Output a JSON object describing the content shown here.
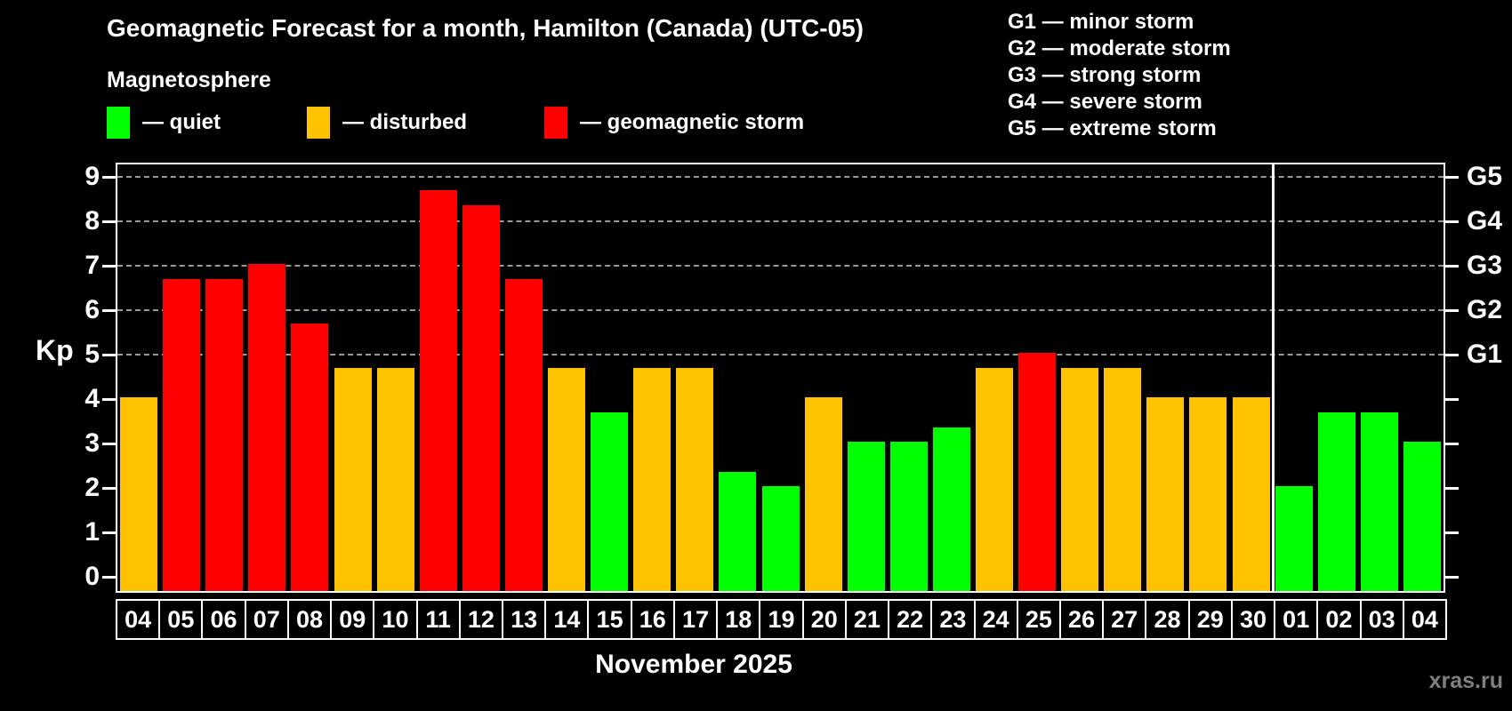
{
  "header": {
    "title": "Geomagnetic Forecast for a month, Hamilton (Canada) (UTC-05)",
    "subtitle": "Magnetosphere"
  },
  "legend": {
    "items": [
      {
        "key": "quiet",
        "label": "— quiet"
      },
      {
        "key": "disturbed",
        "label": "— disturbed"
      },
      {
        "key": "storm",
        "label": "— geomagnetic storm"
      }
    ]
  },
  "g_scale_legend": {
    "items": [
      "G1 — minor storm",
      "G2 — moderate storm",
      "G3 — strong storm",
      "G4 — severe storm",
      "G5 — extreme storm"
    ]
  },
  "chart_data": {
    "type": "bar",
    "title": "Geomagnetic Forecast for a month, Hamilton (Canada) (UTC-05)",
    "ylabel": "Kp",
    "xlabel": "November 2025",
    "ylim": [
      0,
      9
    ],
    "y_ticks": [
      0,
      1,
      2,
      3,
      4,
      5,
      6,
      7,
      8,
      9
    ],
    "gridlines_at": [
      5,
      6,
      7,
      8,
      9
    ],
    "grid": "dashed",
    "legend_position": "top",
    "right_axis": [
      {
        "kp": 5,
        "label": "G1"
      },
      {
        "kp": 6,
        "label": "G2"
      },
      {
        "kp": 7,
        "label": "G3"
      },
      {
        "kp": 8,
        "label": "G4"
      },
      {
        "kp": 9,
        "label": "G5"
      }
    ],
    "colors": {
      "quiet": "#00ff00",
      "disturbed": "#ffc200",
      "storm": "#ff0000",
      "grid": "#9a9a9a",
      "frame": "#ffffff",
      "watermark": "#7f7f7f"
    },
    "month_separator_after_index": 26,
    "bars": [
      {
        "day": "04",
        "value": 4.0,
        "status": "disturbed"
      },
      {
        "day": "05",
        "value": 6.67,
        "status": "storm"
      },
      {
        "day": "06",
        "value": 6.67,
        "status": "storm"
      },
      {
        "day": "07",
        "value": 7.0,
        "status": "storm"
      },
      {
        "day": "08",
        "value": 5.67,
        "status": "storm"
      },
      {
        "day": "09",
        "value": 4.67,
        "status": "disturbed"
      },
      {
        "day": "10",
        "value": 4.67,
        "status": "disturbed"
      },
      {
        "day": "11",
        "value": 8.67,
        "status": "storm"
      },
      {
        "day": "12",
        "value": 8.33,
        "status": "storm"
      },
      {
        "day": "13",
        "value": 6.67,
        "status": "storm"
      },
      {
        "day": "14",
        "value": 4.67,
        "status": "disturbed"
      },
      {
        "day": "15",
        "value": 3.67,
        "status": "quiet"
      },
      {
        "day": "16",
        "value": 4.67,
        "status": "disturbed"
      },
      {
        "day": "17",
        "value": 4.67,
        "status": "disturbed"
      },
      {
        "day": "18",
        "value": 2.33,
        "status": "quiet"
      },
      {
        "day": "19",
        "value": 2.0,
        "status": "quiet"
      },
      {
        "day": "20",
        "value": 4.0,
        "status": "disturbed"
      },
      {
        "day": "21",
        "value": 3.0,
        "status": "quiet"
      },
      {
        "day": "22",
        "value": 3.0,
        "status": "quiet"
      },
      {
        "day": "23",
        "value": 3.33,
        "status": "quiet"
      },
      {
        "day": "24",
        "value": 4.67,
        "status": "disturbed"
      },
      {
        "day": "25",
        "value": 5.0,
        "status": "storm"
      },
      {
        "day": "26",
        "value": 4.67,
        "status": "disturbed"
      },
      {
        "day": "27",
        "value": 4.67,
        "status": "disturbed"
      },
      {
        "day": "28",
        "value": 4.0,
        "status": "disturbed"
      },
      {
        "day": "29",
        "value": 4.0,
        "status": "disturbed"
      },
      {
        "day": "30",
        "value": 4.0,
        "status": "disturbed"
      },
      {
        "day": "01",
        "value": 2.0,
        "status": "quiet"
      },
      {
        "day": "02",
        "value": 3.67,
        "status": "quiet"
      },
      {
        "day": "03",
        "value": 3.67,
        "status": "quiet"
      },
      {
        "day": "04",
        "value": 3.0,
        "status": "quiet"
      }
    ]
  },
  "footer": {
    "xaxis_title": "November 2025",
    "watermark": "xras.ru"
  }
}
